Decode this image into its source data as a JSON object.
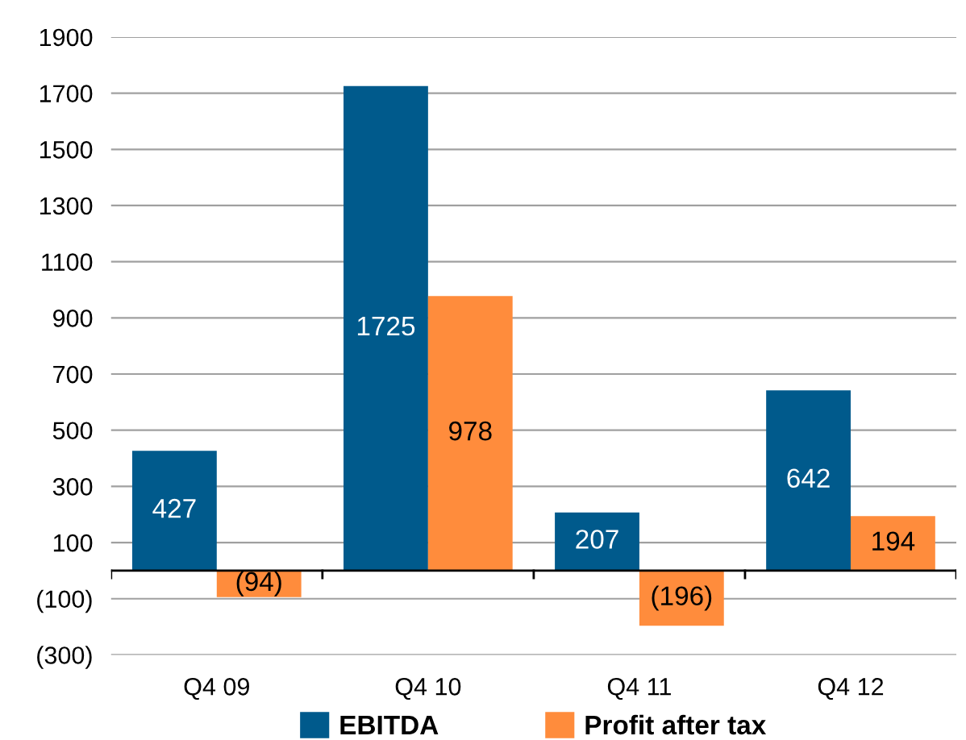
{
  "chart_data": {
    "type": "bar",
    "categories": [
      "Q4 09",
      "Q4 10",
      "Q4 11",
      "Q4 12"
    ],
    "series": [
      {
        "name": "EBITDA",
        "color": "#005a8c",
        "values": [
          427,
          1725,
          207,
          642
        ],
        "value_labels": [
          "427",
          "1725",
          "207",
          "642"
        ]
      },
      {
        "name": "Profit after tax",
        "color": "#ff8c3c",
        "values": [
          -94,
          978,
          -196,
          194
        ],
        "value_labels": [
          "(94)",
          "978",
          "(196)",
          "194"
        ]
      }
    ],
    "ylim": [
      -300,
      1900
    ],
    "yticks": [
      {
        "value": -300,
        "label": "(300)"
      },
      {
        "value": -100,
        "label": "(100)"
      },
      100,
      300,
      500,
      700,
      900,
      1100,
      1300,
      1500,
      1700,
      1900
    ],
    "grid": "y",
    "legend": "bottom"
  }
}
